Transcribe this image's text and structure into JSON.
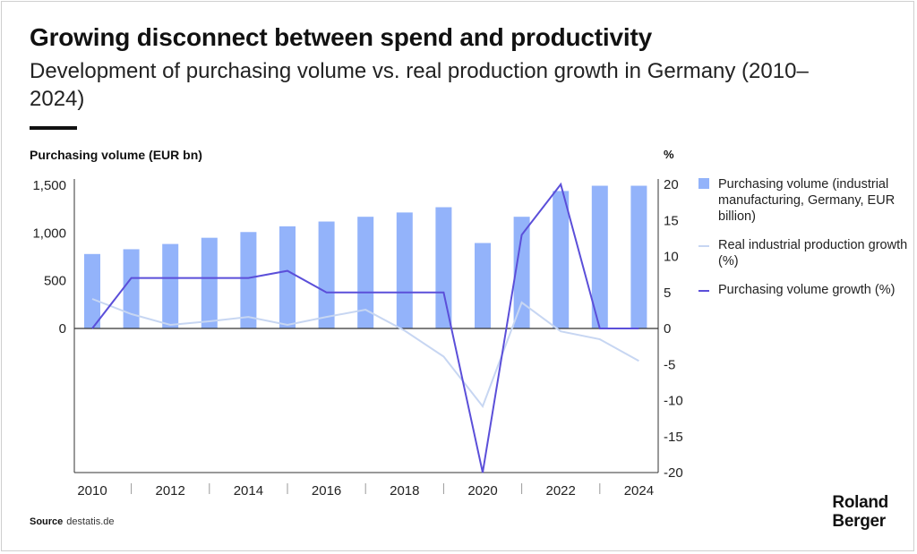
{
  "title": "Growing disconnect between spend and productivity",
  "subtitle": "Development of purchasing volume vs. real production growth in Germany (2010–2024)",
  "source_label": "Source",
  "source_value": "destatis.de",
  "logo_text": [
    "Roland",
    "Berger"
  ],
  "colors": {
    "bar": "#93b3fa",
    "real_growth": "#c7d6f2",
    "purchasing_growth": "#5b4fd9"
  },
  "chart_data": {
    "type": "bar+line",
    "title": "Growing disconnect between spend and productivity",
    "ylabel_left": "Purchasing volume (EUR bn)",
    "ylabel_right": "%",
    "ylim_left": [
      0,
      1500
    ],
    "ylim_right": [
      -20,
      20
    ],
    "yticks_left": [
      "1,500",
      "1,000",
      "500",
      "0"
    ],
    "yticks_left_values": [
      1500,
      1000,
      500,
      0
    ],
    "yticks_right": [
      "20",
      "15",
      "10",
      "5",
      "0",
      "-5",
      "-10",
      "-15",
      "-20"
    ],
    "yticks_right_values": [
      20,
      15,
      10,
      5,
      0,
      -5,
      -10,
      -15,
      -20
    ],
    "x": [
      2010,
      2011,
      2012,
      2013,
      2014,
      2015,
      2016,
      2017,
      2018,
      2019,
      2020,
      2021,
      2022,
      2023,
      2024
    ],
    "xtick_labels": [
      "2010",
      "2012",
      "2014",
      "2016",
      "2018",
      "2020",
      "2022",
      "2024"
    ],
    "grid": false,
    "legend_placement": "right",
    "series": [
      {
        "name": "Purchasing volume (industrial manufacturing, Germany, EUR billion)",
        "type": "bar",
        "axis": "left",
        "values": [
          780,
          830,
          885,
          950,
          1010,
          1070,
          1120,
          1170,
          1215,
          1270,
          895,
          1170,
          1440,
          1495,
          1495
        ]
      },
      {
        "name": "Real industrial production growth (%)",
        "type": "line",
        "axis": "right",
        "values": [
          4.1,
          2.0,
          0.5,
          1.0,
          1.6,
          0.5,
          1.6,
          2.6,
          -0.3,
          -3.9,
          -10.8,
          3.6,
          -0.4,
          -1.5,
          -4.5
        ]
      },
      {
        "name": "Purchasing volume growth (%)",
        "type": "line",
        "axis": "right",
        "values": [
          0,
          7,
          7,
          7,
          7,
          8,
          5,
          5,
          5,
          5,
          -20,
          13,
          20,
          0,
          0
        ]
      }
    ]
  }
}
